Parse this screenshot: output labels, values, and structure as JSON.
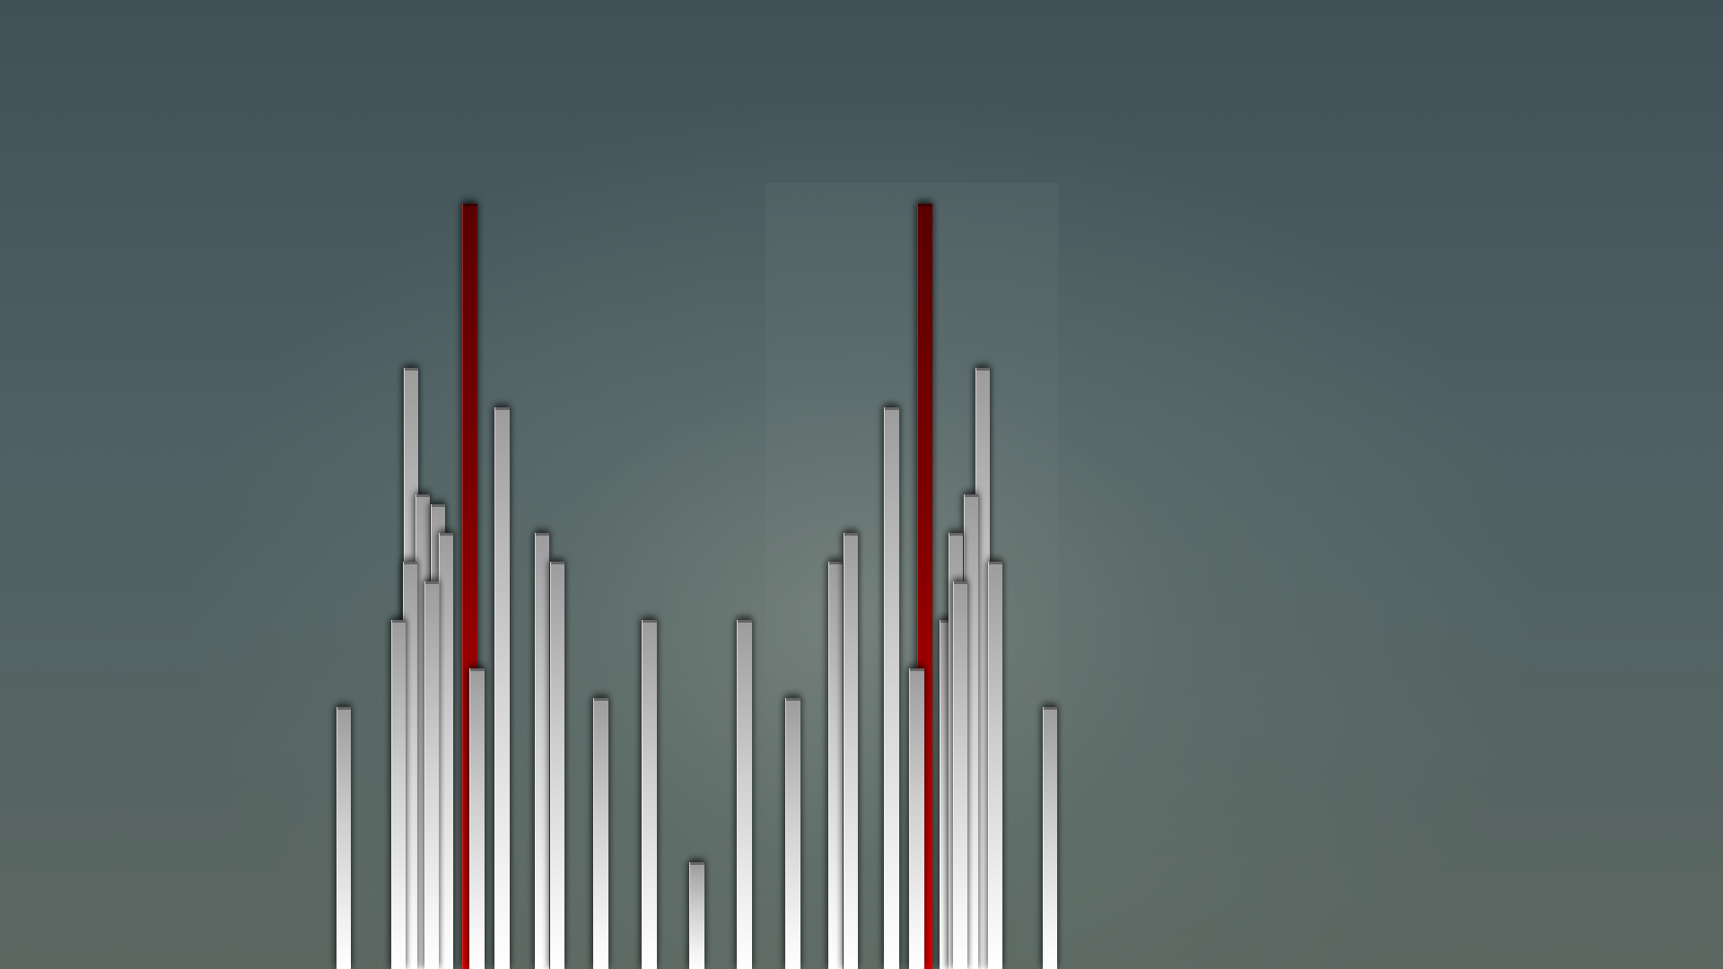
{
  "scene": {
    "description_free": true,
    "colors": {
      "background_top": "#3f5157",
      "background_bottom": "#5b6761",
      "bar_white": "#e8e8e8",
      "bar_red": "#a00000"
    },
    "bars": [
      {
        "id": "bar-01",
        "color": "white",
        "level": 0.27
      },
      {
        "id": "bar-02",
        "color": "white",
        "level": 0.42
      },
      {
        "id": "bar-03",
        "color": "white",
        "level": 0.62
      },
      {
        "id": "bar-04",
        "color": "white",
        "level": 0.49
      },
      {
        "id": "bar-05",
        "color": "white",
        "level": 0.48
      },
      {
        "id": "bar-06",
        "color": "white",
        "level": 0.36
      },
      {
        "id": "bar-07",
        "color": "white",
        "level": 0.45
      },
      {
        "id": "bar-08",
        "color": "white",
        "level": 0.4
      },
      {
        "id": "bar-09",
        "color": "red",
        "level": 0.79
      },
      {
        "id": "bar-10",
        "color": "white",
        "level": 0.31
      },
      {
        "id": "bar-11",
        "color": "white",
        "level": 0.58
      },
      {
        "id": "bar-12",
        "color": "white",
        "level": 0.45
      },
      {
        "id": "bar-13",
        "color": "white",
        "level": 0.42
      },
      {
        "id": "bar-14",
        "color": "white",
        "level": 0.28
      },
      {
        "id": "bar-15",
        "color": "white",
        "level": 0.36
      },
      {
        "id": "bar-16",
        "color": "white",
        "level": 0.11
      },
      {
        "id": "bar-17",
        "color": "white",
        "level": 0.36
      },
      {
        "id": "bar-18",
        "color": "white",
        "level": 0.28
      },
      {
        "id": "bar-19",
        "color": "white",
        "level": 0.42
      },
      {
        "id": "bar-20",
        "color": "white",
        "level": 0.45
      },
      {
        "id": "bar-21",
        "color": "white",
        "level": 0.58
      },
      {
        "id": "bar-22",
        "color": "red",
        "level": 0.79
      },
      {
        "id": "bar-23",
        "color": "white",
        "level": 0.31
      },
      {
        "id": "bar-24",
        "color": "white",
        "level": 0.4
      },
      {
        "id": "bar-25",
        "color": "white",
        "level": 0.45
      },
      {
        "id": "bar-26",
        "color": "white",
        "level": 0.36
      },
      {
        "id": "bar-27",
        "color": "white",
        "level": 0.49
      },
      {
        "id": "bar-28",
        "color": "white",
        "level": 0.62
      },
      {
        "id": "bar-29",
        "color": "white",
        "level": 0.42
      },
      {
        "id": "bar-30",
        "color": "white",
        "level": 0.27
      }
    ]
  }
}
